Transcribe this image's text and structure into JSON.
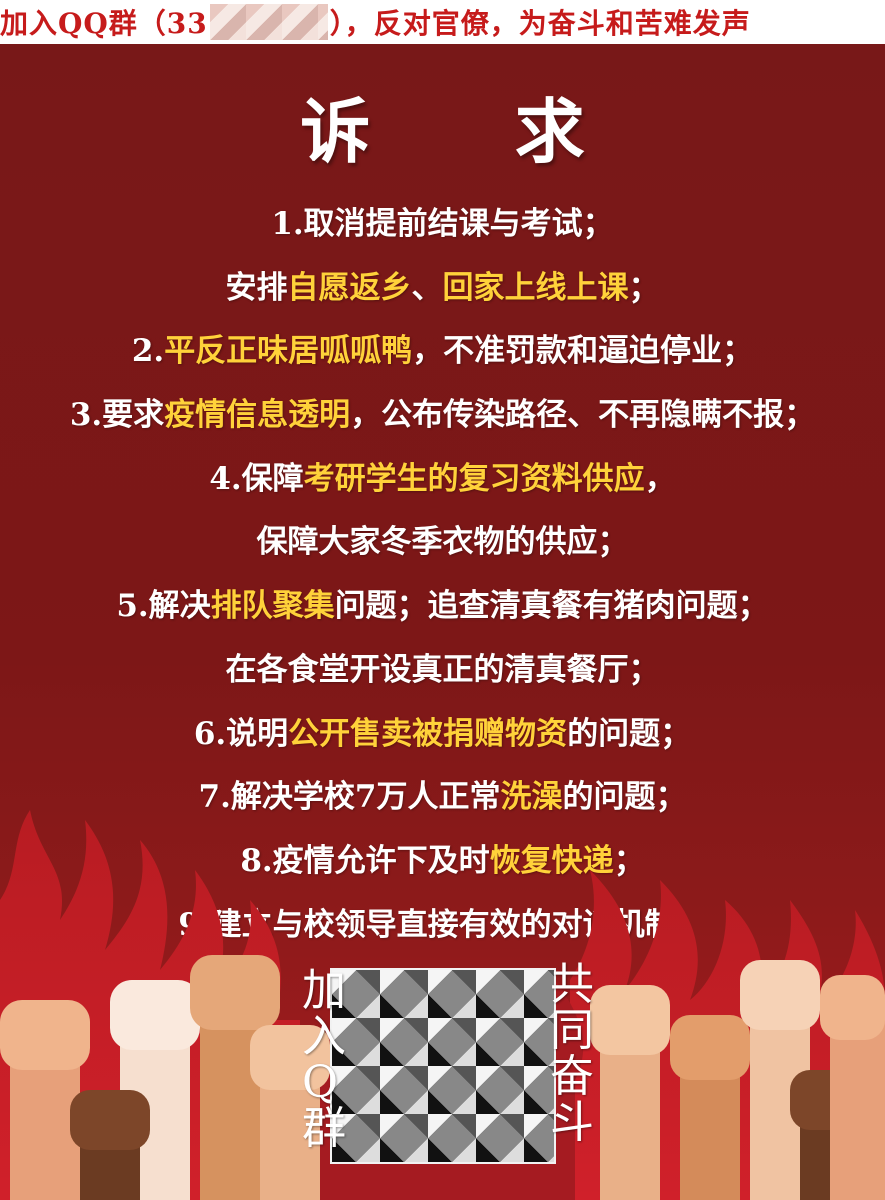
{
  "banner": {
    "prefix": "加入QQ群（33",
    "suffix": "），反对官僚，为奋斗和苦难发声"
  },
  "title": "诉 求",
  "demands": [
    [
      {
        "text": "1.取消提前结课与考试；"
      }
    ],
    [
      {
        "text": "安排"
      },
      {
        "text": "自愿返乡",
        "hl": true
      },
      {
        "text": "、"
      },
      {
        "text": "回家上线上课",
        "hl": true
      },
      {
        "text": "；"
      }
    ],
    [
      {
        "text": "2."
      },
      {
        "text": "平反正味居呱呱鸭",
        "hl": true
      },
      {
        "text": "，不准罚款和逼迫停业；"
      }
    ],
    [
      {
        "text": "3.要求"
      },
      {
        "text": "疫情信息透明",
        "hl": true
      },
      {
        "text": "，公布传染路径、不再隐瞒不报；"
      }
    ],
    [
      {
        "text": "4.保障"
      },
      {
        "text": "考研学生的复习资料供应",
        "hl": true
      },
      {
        "text": "，"
      }
    ],
    [
      {
        "text": "保障大家冬季衣物的供应；"
      }
    ],
    [
      {
        "text": "5.解决"
      },
      {
        "text": "排队聚集",
        "hl": true
      },
      {
        "text": "问题；追查清真餐有猪肉问题；"
      }
    ],
    [
      {
        "text": "在各食堂开设真正的清真餐厅；"
      }
    ],
    [
      {
        "text": "6.说明"
      },
      {
        "text": "公开售卖被捐赠物资",
        "hl": true
      },
      {
        "text": "的问题；"
      }
    ],
    [
      {
        "text": "7.解决学校7万人正常"
      },
      {
        "text": "洗澡",
        "hl": true
      },
      {
        "text": "的问题；"
      }
    ],
    [
      {
        "text": "8.疫情允许下及时"
      },
      {
        "text": "恢复快递",
        "hl": true
      },
      {
        "text": "；"
      }
    ],
    [
      {
        "text": "9.建立与校领导直接有效的对话机制。"
      }
    ]
  ],
  "bottom": {
    "left_vertical": "加入Q群",
    "right_vertical": "共同奋斗"
  },
  "colors": {
    "background": "#7a1616",
    "highlight": "#ffd23a",
    "banner_text": "#c61b1b"
  },
  "icons": [
    "fist-icon",
    "flame-icon",
    "qr-code-icon"
  ]
}
